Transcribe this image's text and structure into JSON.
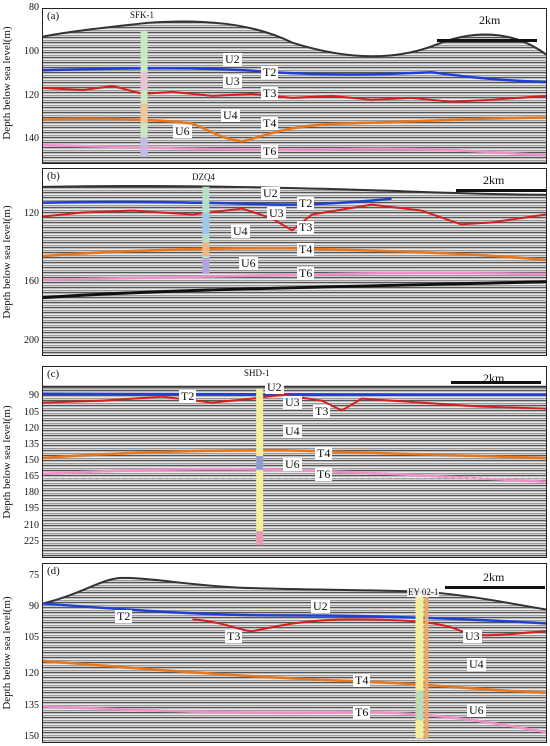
{
  "panels": [
    {
      "id": "a",
      "label": "(a)",
      "y_title": "Depth below sea level(m)",
      "y_ticks": [
        "80",
        "100",
        "120",
        "140"
      ],
      "well": "SFK-1",
      "scale": "2km",
      "units": [
        "U2",
        "U3",
        "U4",
        "U6"
      ],
      "horizons": [
        "T2",
        "T3",
        "T4",
        "T6"
      ]
    },
    {
      "id": "b",
      "label": "(b)",
      "y_title": "Depth below sea level(m)",
      "y_ticks": [
        "120",
        "160",
        "200"
      ],
      "well": "DZQ4",
      "scale": "2km",
      "units": [
        "U2",
        "U3",
        "U4",
        "U6"
      ],
      "horizons": [
        "T2",
        "T3",
        "T4",
        "T6"
      ]
    },
    {
      "id": "c",
      "label": "(c)",
      "y_title": "Depth below sea level(m)",
      "y_ticks": [
        "90",
        "105",
        "120",
        "135",
        "150",
        "165",
        "180",
        "195",
        "210",
        "225"
      ],
      "well": "SHD-1",
      "scale": "2km",
      "units": [
        "U2",
        "U3",
        "U4",
        "U6"
      ],
      "horizons": [
        "T2",
        "T3",
        "T4",
        "T6"
      ]
    },
    {
      "id": "d",
      "label": "(d)",
      "y_title": "Depth below sea level(m)",
      "y_ticks": [
        "75",
        "90",
        "105",
        "120",
        "135",
        "150"
      ],
      "well": "EY 02-1",
      "scale": "2km",
      "units": [
        "U2",
        "U3",
        "U4",
        "U6"
      ],
      "horizons": [
        "T2",
        "T3",
        "T4",
        "T6"
      ]
    }
  ],
  "colors": {
    "T2": "#1f3fd6",
    "T3": "#d81e1e",
    "T4": "#e8761a",
    "T6": "#f08fc8"
  }
}
